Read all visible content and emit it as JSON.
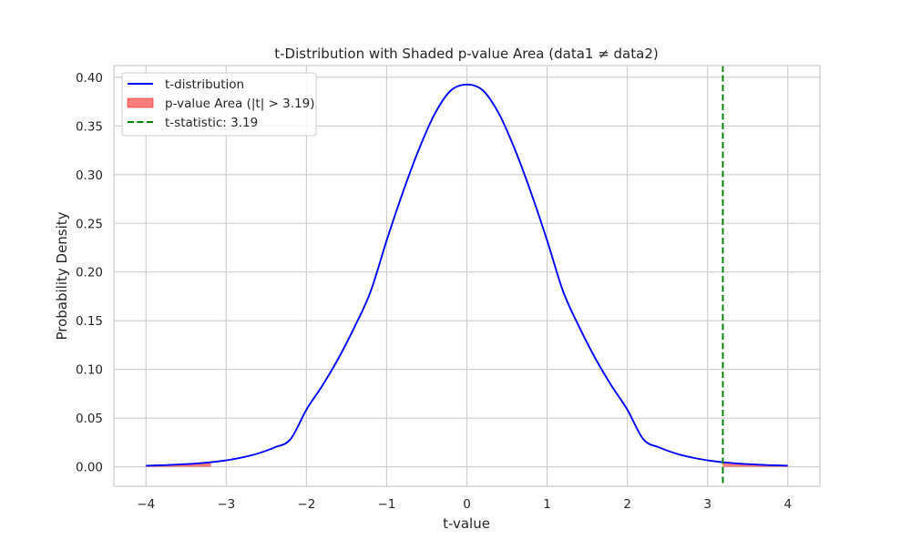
{
  "chart_data": {
    "type": "line",
    "title": "t-Distribution with Shaded p-value Area (data1 ≠ data2)",
    "xlabel": "t-value",
    "ylabel": "Probability Density",
    "xlim": [
      -4.4,
      4.4
    ],
    "ylim": [
      -0.02,
      0.412
    ],
    "xticks": [
      -4,
      -3,
      -2,
      -1,
      0,
      1,
      2,
      3,
      4
    ],
    "xtick_labels": [
      "−4",
      "−3",
      "−2",
      "−1",
      "0",
      "1",
      "2",
      "3",
      "4"
    ],
    "yticks": [
      0.0,
      0.05,
      0.1,
      0.15,
      0.2,
      0.25,
      0.3,
      0.35,
      0.4
    ],
    "ytick_labels": [
      "0.00",
      "0.05",
      "0.10",
      "0.15",
      "0.20",
      "0.25",
      "0.30",
      "0.35",
      "0.40"
    ],
    "grid": true,
    "legend_position": "top-left",
    "series": [
      {
        "name": "t-distribution",
        "style": "solid",
        "color": "#0000ff",
        "x": [
          -4.0,
          -3.8,
          -3.6,
          -3.4,
          -3.2,
          -3.0,
          -2.8,
          -2.6,
          -2.4,
          -2.2,
          -2.0,
          -1.8,
          -1.6,
          -1.4,
          -1.2,
          -1.0,
          -0.8,
          -0.6,
          -0.4,
          -0.2,
          0.0,
          0.2,
          0.4,
          0.6,
          0.8,
          1.0,
          1.2,
          1.4,
          1.6,
          1.8,
          2.0,
          2.2,
          2.4,
          2.6,
          2.8,
          3.0,
          3.2,
          3.4,
          3.6,
          3.8,
          4.0
        ],
        "y": [
          0.0011,
          0.0016,
          0.0023,
          0.0032,
          0.0046,
          0.0066,
          0.0096,
          0.0138,
          0.0198,
          0.0282,
          0.0587,
          0.0836,
          0.1115,
          0.1436,
          0.18,
          0.2324,
          0.2814,
          0.3255,
          0.3625,
          0.3864,
          0.3925,
          0.3864,
          0.3625,
          0.3255,
          0.2814,
          0.2324,
          0.18,
          0.1436,
          0.1115,
          0.0836,
          0.0587,
          0.0282,
          0.0198,
          0.0138,
          0.0096,
          0.0066,
          0.0046,
          0.0032,
          0.0023,
          0.0016,
          0.0011
        ]
      },
      {
        "name": "t-statistic: 3.19",
        "style": "dashed-vertical",
        "color": "#008000",
        "x_value": 3.19
      }
    ],
    "shaded_regions": [
      {
        "name": "p-value Area (|t| > 3.19)",
        "color": "#ff0000",
        "opacity": 0.5,
        "ranges": [
          [
            -4.0,
            -3.19
          ],
          [
            3.19,
            4.0
          ]
        ]
      }
    ],
    "legend": [
      {
        "label": "t-distribution",
        "kind": "line",
        "color": "#0000ff"
      },
      {
        "label": "p-value Area (|t| > 3.19)",
        "kind": "patch",
        "color": "#ff0000"
      },
      {
        "label": "t-statistic: 3.19",
        "kind": "dashed",
        "color": "#008000"
      }
    ]
  }
}
